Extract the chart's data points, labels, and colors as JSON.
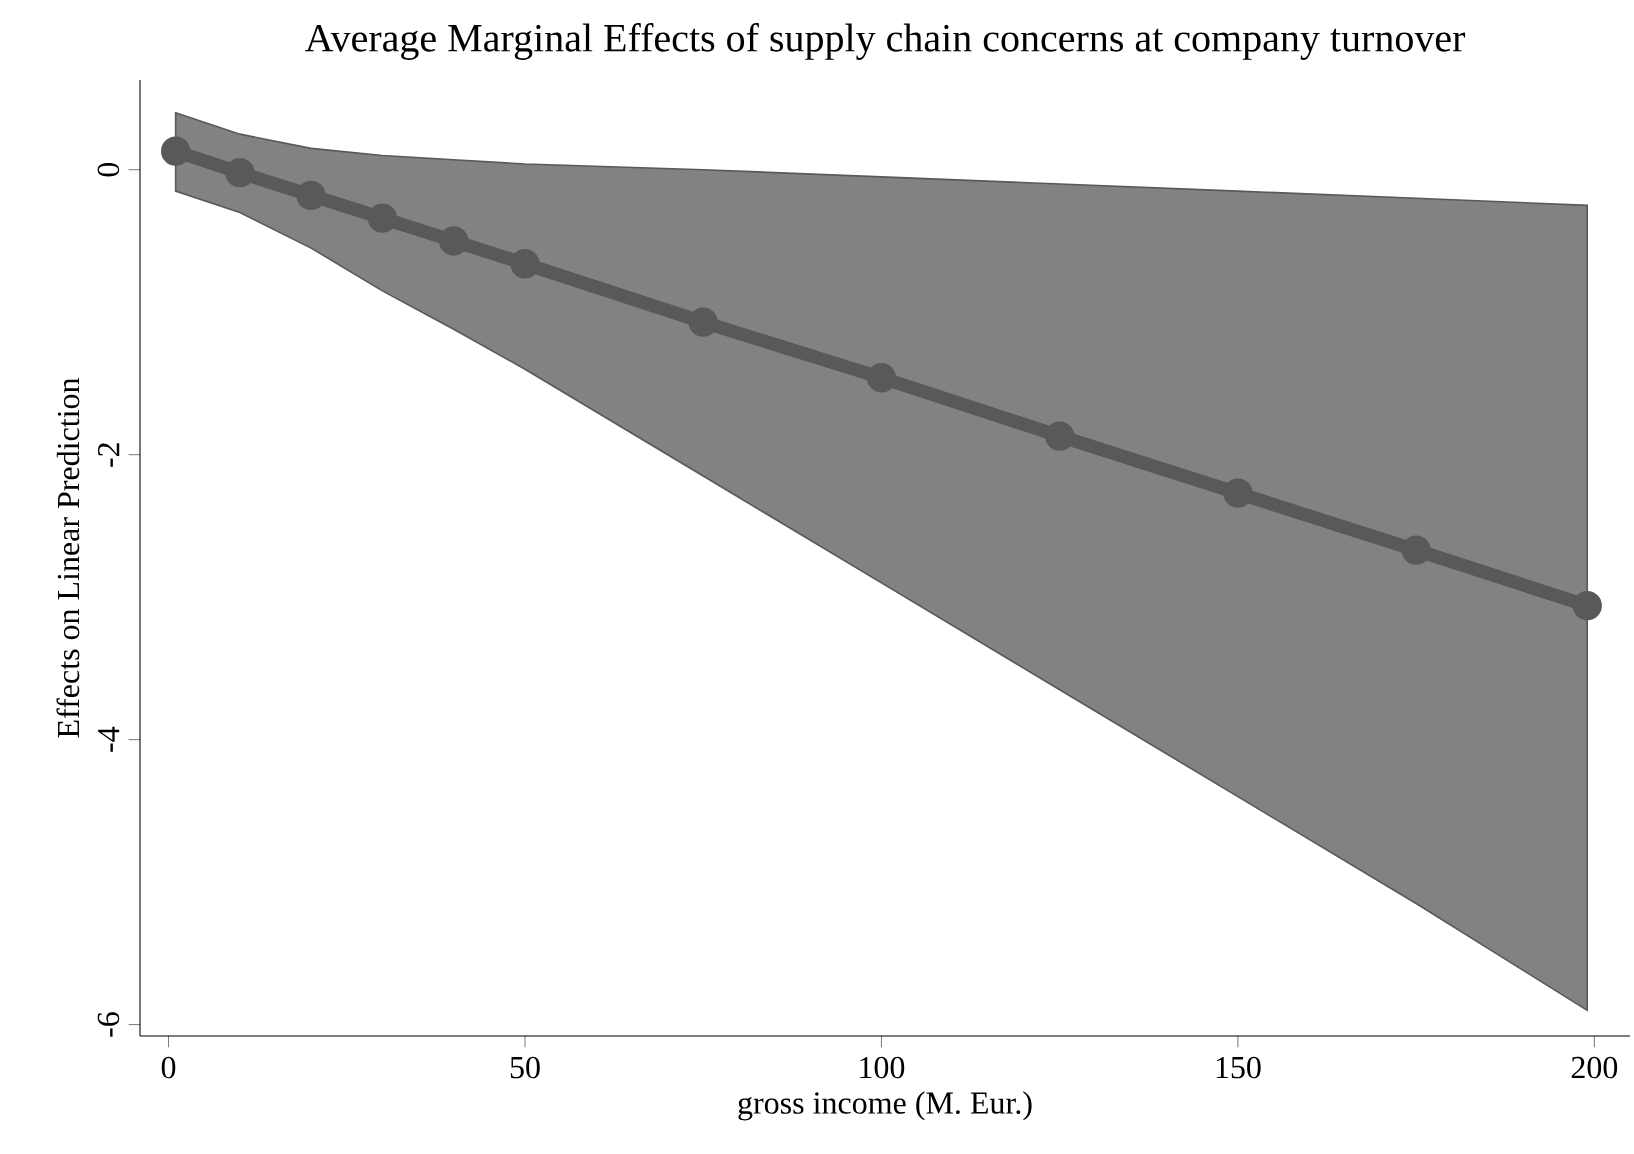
{
  "chart_data": {
    "type": "line",
    "title": "Average Marginal Effects of supply chain concerns at company turnover",
    "xlabel": "gross income (M. Eur.)",
    "ylabel": "Effects on Linear Prediction",
    "xlim": [
      -4,
      205
    ],
    "ylim": [
      -6.08,
      0.63
    ],
    "xticks": [
      0,
      50,
      100,
      150,
      200
    ],
    "yticks": [
      0,
      -2,
      -4,
      -6
    ],
    "grid": false,
    "marker": "circle",
    "line_style": "solid",
    "series": [
      {
        "color": "#595959",
        "x": [
          1,
          10,
          20,
          30,
          40,
          50,
          75,
          100,
          125,
          150,
          175,
          199
        ],
        "values": [
          0.13,
          -0.02,
          -0.18,
          -0.34,
          -0.5,
          -0.66,
          -1.07,
          -1.46,
          -1.87,
          -2.27,
          -2.67,
          -3.06
        ],
        "lower": [
          -0.15,
          -0.3,
          -0.55,
          -0.85,
          -1.12,
          -1.4,
          -2.15,
          -2.9,
          -3.65,
          -4.4,
          -5.15,
          -5.9
        ],
        "upper": [
          0.4,
          0.25,
          0.15,
          0.1,
          0.07,
          0.04,
          0,
          -0.05,
          -0.1,
          -0.15,
          -0.2,
          -0.25
        ]
      }
    ]
  }
}
